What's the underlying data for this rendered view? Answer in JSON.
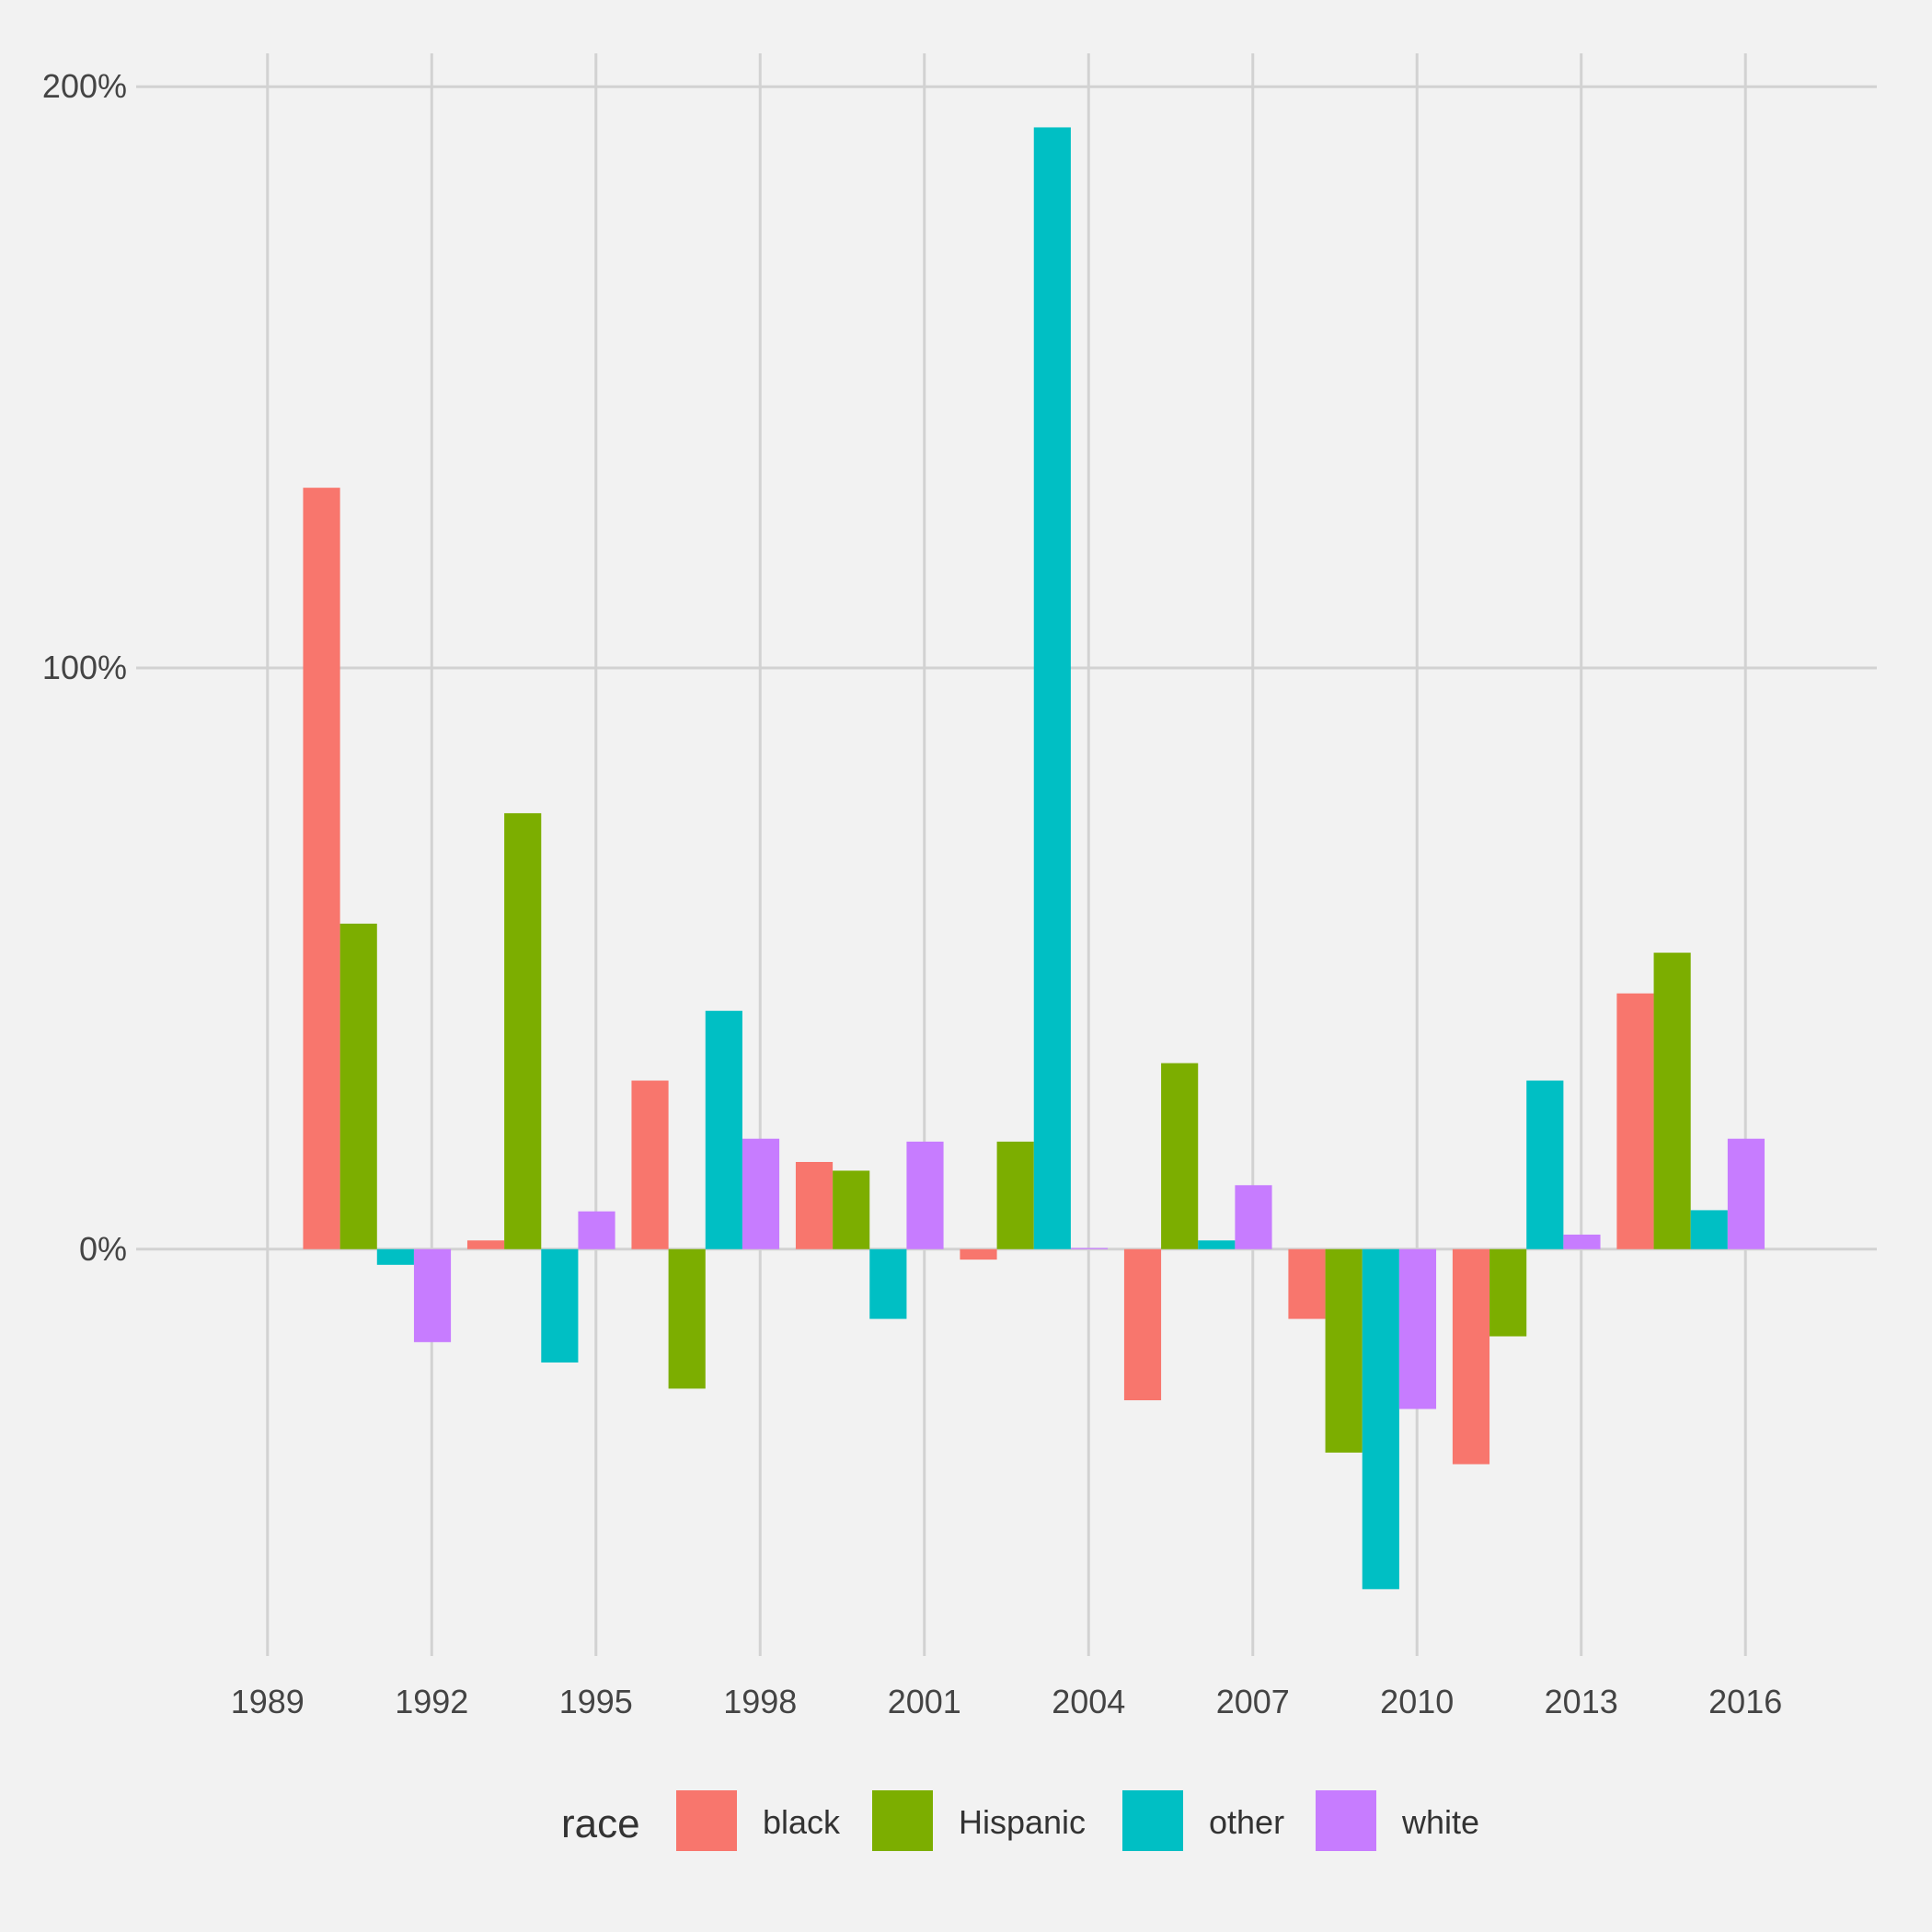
{
  "chart_data": {
    "type": "bar",
    "title": "",
    "xlabel": "",
    "ylabel": "",
    "x": [
      1991,
      1994,
      1997,
      2000,
      2003,
      2006,
      2009,
      2012,
      2015
    ],
    "x_ticks": [
      1989,
      1992,
      1995,
      1998,
      2001,
      2004,
      2007,
      2010,
      2013,
      2016
    ],
    "x_tick_labels": [
      "1989",
      "1992",
      "1995",
      "1998",
      "2001",
      "2004",
      "2007",
      "2010",
      "2013",
      "2016"
    ],
    "xlim": [
      1986.6,
      2018.4
    ],
    "y_ticks": [
      0,
      1,
      2
    ],
    "y_tick_labels": [
      "0%",
      "100%",
      "200%"
    ],
    "ylim": [
      -0.7,
      2.07
    ],
    "grid": true,
    "legend": {
      "title": "race",
      "position": "bottom"
    },
    "series": [
      {
        "name": "black",
        "color": "#F8766D",
        "values": [
          1.31,
          0.015,
          0.29,
          0.15,
          -0.018,
          -0.26,
          -0.12,
          -0.37,
          0.44
        ]
      },
      {
        "name": "Hispanic",
        "color": "#7CAE00",
        "values": [
          0.56,
          0.75,
          -0.24,
          0.135,
          0.185,
          0.32,
          -0.35,
          -0.15,
          0.51
        ]
      },
      {
        "name": "other",
        "color": "#00BFC4",
        "values": [
          -0.027,
          -0.195,
          0.41,
          -0.12,
          1.93,
          0.015,
          -0.585,
          0.29,
          0.067
        ]
      },
      {
        "name": "white",
        "color": "#C77CFF",
        "values": [
          -0.16,
          0.065,
          0.19,
          0.185,
          0.002,
          0.11,
          -0.275,
          0.025,
          0.19
        ]
      }
    ]
  }
}
